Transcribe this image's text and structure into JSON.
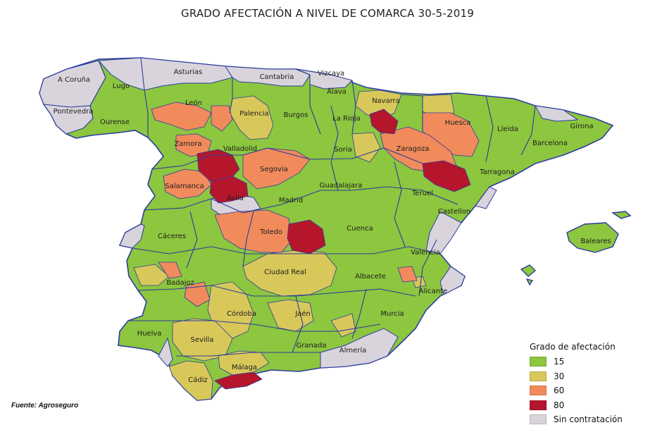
{
  "title": "GRADO AFECTACIÓN A NIVEL DE COMARCA 30-5-2019",
  "source": "Fuente: Agroseguro",
  "legend": {
    "title": "Grado de afectación",
    "items": [
      {
        "label": "15",
        "color": "#8dc63f"
      },
      {
        "label": "30",
        "color": "#d8c85a"
      },
      {
        "label": "60",
        "color": "#f28b5c"
      },
      {
        "label": "80",
        "color": "#b5162b"
      },
      {
        "label": "Sin contratación",
        "color": "#d9d4dc"
      }
    ]
  },
  "provinces": [
    {
      "name": "A Coruña",
      "level": "sin"
    },
    {
      "name": "Lugo",
      "level": "15"
    },
    {
      "name": "Asturias",
      "level": "sin"
    },
    {
      "name": "Cantabria",
      "level": "sin"
    },
    {
      "name": "Vizcaya",
      "level": "sin"
    },
    {
      "name": "Álava",
      "level": "15"
    },
    {
      "name": "Navarra",
      "level": "30"
    },
    {
      "name": "Pontevedra",
      "level": "sin"
    },
    {
      "name": "Ourense",
      "level": "15"
    },
    {
      "name": "León",
      "level": "60"
    },
    {
      "name": "Palencia",
      "level": "30"
    },
    {
      "name": "Burgos",
      "level": "15"
    },
    {
      "name": "La Rioja",
      "level": "15"
    },
    {
      "name": "Huesca",
      "level": "60"
    },
    {
      "name": "Lleida",
      "level": "15"
    },
    {
      "name": "Girona",
      "level": "15"
    },
    {
      "name": "Zamora",
      "level": "60"
    },
    {
      "name": "Valladolid",
      "level": "80"
    },
    {
      "name": "Soria",
      "level": "30"
    },
    {
      "name": "Zaragoza",
      "level": "60"
    },
    {
      "name": "Barcelona",
      "level": "15"
    },
    {
      "name": "Tarragona",
      "level": "15"
    },
    {
      "name": "Segovia",
      "level": "60"
    },
    {
      "name": "Salamanca",
      "level": "60"
    },
    {
      "name": "Ávila",
      "level": "80"
    },
    {
      "name": "Guadalajara",
      "level": "15"
    },
    {
      "name": "Teruel",
      "level": "15"
    },
    {
      "name": "Madrid",
      "level": "15"
    },
    {
      "name": "Castellon",
      "level": "15"
    },
    {
      "name": "Cáceres",
      "level": "15"
    },
    {
      "name": "Toledo",
      "level": "60"
    },
    {
      "name": "Cuenca",
      "level": "15"
    },
    {
      "name": "Baleares",
      "level": "15"
    },
    {
      "name": "Valencia",
      "level": "15"
    },
    {
      "name": "Ciudad Real",
      "level": "30"
    },
    {
      "name": "Albacete",
      "level": "15"
    },
    {
      "name": "Badajoz",
      "level": "15"
    },
    {
      "name": "Alicante",
      "level": "15"
    },
    {
      "name": "Córdoba",
      "level": "30"
    },
    {
      "name": "Jaén",
      "level": "15"
    },
    {
      "name": "Murcia",
      "level": "15"
    },
    {
      "name": "Huelva",
      "level": "15"
    },
    {
      "name": "Sevilla",
      "level": "30"
    },
    {
      "name": "Granada",
      "level": "15"
    },
    {
      "name": "Almería",
      "level": "sin"
    },
    {
      "name": "Málaga",
      "level": "30"
    },
    {
      "name": "Cádiz",
      "level": "30"
    }
  ]
}
